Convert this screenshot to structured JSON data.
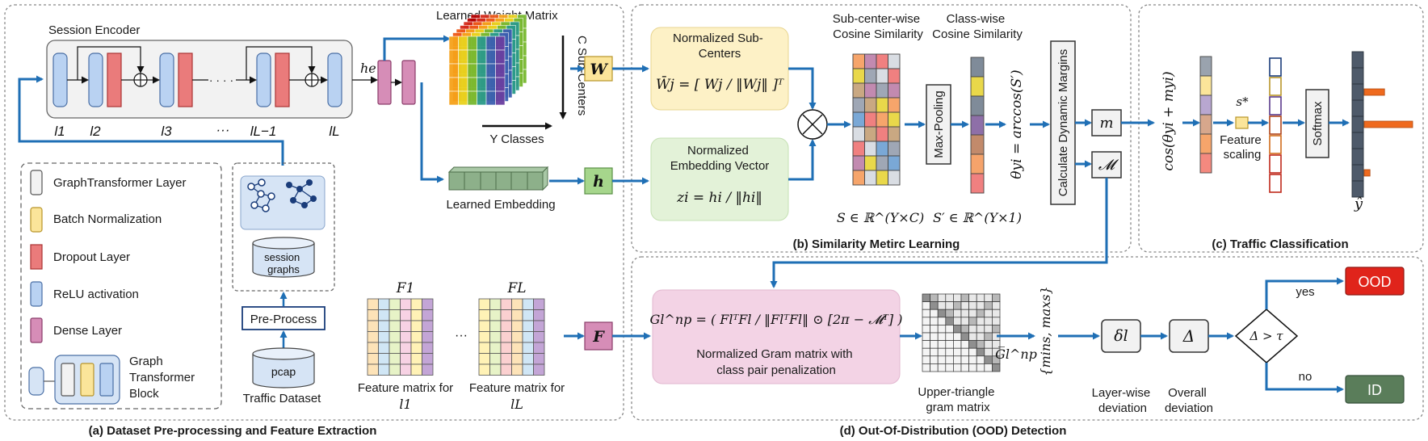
{
  "panels": {
    "a": "(a) Dataset Pre-processing and Feature Extraction",
    "b": "(b) Similarity Metirc Learning",
    "c": "(c) Traffic Classification",
    "d": "(d) Out-Of-Distribution (OOD) Detection"
  },
  "encoder": {
    "title": "Session Encoder",
    "layer_labels": [
      "l1",
      "l2",
      "l3",
      "···",
      "lL−1",
      "lL"
    ],
    "he_label": "he",
    "ellipsis": "· · · ·"
  },
  "legend": {
    "items": [
      {
        "label": "GraphTransformer Layer",
        "color": "#f2f2f2"
      },
      {
        "label": "Batch Normalization",
        "color": "#fbe59a"
      },
      {
        "label": "Dropout Layer",
        "color": "#ea7b7b"
      },
      {
        "label": "ReLU activation",
        "color": "#b9d2f2"
      },
      {
        "label": "Dense Layer",
        "color": "#d68db7"
      }
    ],
    "block_label": "Graph Transformer Block"
  },
  "dataset": {
    "graphs_label": "session graphs",
    "preprocess_label": "Pre-Process",
    "pcap_label": "pcap",
    "caption": "Traffic Dataset"
  },
  "weights": {
    "title": "Learned Weight Matrix",
    "sub_centers_label": "C Sub-Centers",
    "classes_label": "Y Classes",
    "embedding_label": "Learned Embedding"
  },
  "feature_matrices": {
    "first_title": "F1",
    "last_title": "FL",
    "ellipsis": "···",
    "first_caption": "Feature matrix for l1",
    "last_caption": "Feature matrix for lL"
  },
  "inputs": {
    "W": "W",
    "h": "h",
    "F": "F"
  },
  "similarity": {
    "subcenters_title": "Normalized Sub-Centers",
    "subcenters_formula": "W̄j = [ Wj / ‖Wj‖ ]ᵀ",
    "embedding_title": "Normalized Embedding Vector",
    "embedding_formula": "zi = hi / ‖hi‖",
    "subcenter_cos_label": "Sub-center-wise Cosine Similarity",
    "classwise_cos_label": "Class-wise Cosine Similarity",
    "maxpool_label": "Max-Pooling",
    "theta_label": "θyi = arccos(S′)",
    "margins_label": "Calculate Dynamic Margins",
    "m_label": "m",
    "M_label": "𝓜",
    "S_label": "S ∈ ℝ^(Y×C)",
    "Sp_label": "S′ ∈ ℝ^(Y×1)"
  },
  "classification": {
    "cos_label": "cos(θyi + myi)",
    "s_label": "s*",
    "feature_scaling_label": "Feature scaling",
    "softmax_label": "Softmax",
    "yhat_label": "ŷ",
    "output_bars": [
      0.0,
      0.0,
      0.42,
      0.0,
      1.0,
      0.0,
      0.0,
      0.12,
      0.0
    ]
  },
  "ood": {
    "gram_formula": "Gl^np = ( FlᵀFl / ‖FlᵀFl‖ ⊙ [2π − 𝓜ᵀ] )",
    "gram_caption": "Normalized Gram matrix with class pair penalization",
    "upper_caption": "Upper-triangle gram matrix",
    "gram_symbol": "G̅l^np",
    "minmax_label": "{mins, maxs}",
    "delta_l_label": "δl",
    "delta_l_caption": "Layer-wise deviation",
    "delta_label": "Δ",
    "delta_caption": "Overall deviation",
    "decision_label": "Δ > τ",
    "yes_label": "yes",
    "no_label": "no",
    "ood_label": "OOD",
    "id_label": "ID"
  },
  "colors": {
    "arrow": "#1f6fb5",
    "ood": "#e0241b",
    "id": "#5a7d5a",
    "w_box": "#fbe59a",
    "h_box": "#a6d68c",
    "f_box": "#d68db7"
  }
}
